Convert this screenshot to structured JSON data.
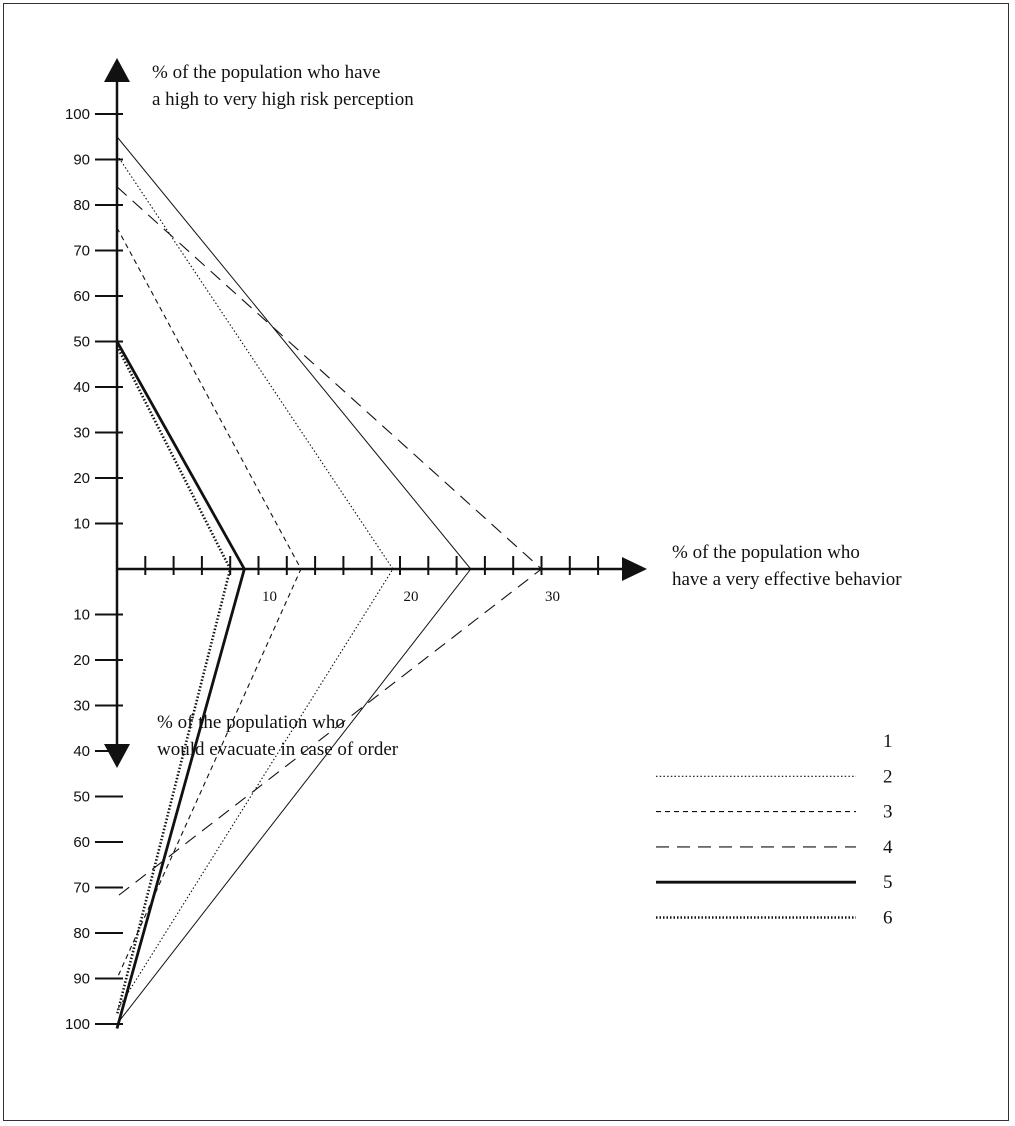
{
  "chart_data": {
    "type": "line",
    "axes": {
      "up": {
        "title_lines": [
          "% of the population who have",
          "a high to very high risk perception"
        ],
        "ticks": [
          10,
          20,
          30,
          40,
          50,
          60,
          70,
          80,
          90,
          100
        ],
        "range": [
          0,
          100
        ]
      },
      "right": {
        "title_lines": [
          "% of the population who",
          "have a very effective behavior"
        ],
        "ticks": [
          10,
          20,
          30
        ],
        "minor_ticks": [
          2,
          4,
          6,
          8,
          10,
          12,
          14,
          16,
          18,
          20,
          22,
          24,
          26,
          28,
          30,
          32,
          34
        ],
        "range": [
          0,
          35
        ]
      },
      "down": {
        "title_lines": [
          "% of the population who",
          "would evacuate in case of order"
        ],
        "ticks": [
          10,
          20,
          30,
          40,
          50,
          60,
          70,
          80,
          90,
          100
        ],
        "range": [
          0,
          100
        ]
      }
    },
    "series": [
      {
        "name": "1",
        "style": "solid-thin",
        "risk_perception": 95,
        "effective_behavior": 25,
        "evacuate": 100
      },
      {
        "name": "2",
        "style": "dotted-fine",
        "risk_perception": 91,
        "effective_behavior": 19.5,
        "evacuate": 97
      },
      {
        "name": "3",
        "style": "short-dash",
        "risk_perception": 75,
        "effective_behavior": 13,
        "evacuate": 90
      },
      {
        "name": "4",
        "style": "long-dash",
        "risk_perception": 84,
        "effective_behavior": 30,
        "evacuate": 72
      },
      {
        "name": "5",
        "style": "solid-thick",
        "risk_perception": 50,
        "effective_behavior": 9,
        "evacuate": 101
      },
      {
        "name": "6",
        "style": "dotted-thick",
        "risk_perception": 49,
        "effective_behavior": 8,
        "evacuate": 98
      }
    ],
    "legend": {
      "position": "bottom-right",
      "entries": [
        "1",
        "2",
        "3",
        "4",
        "5",
        "6"
      ]
    }
  }
}
